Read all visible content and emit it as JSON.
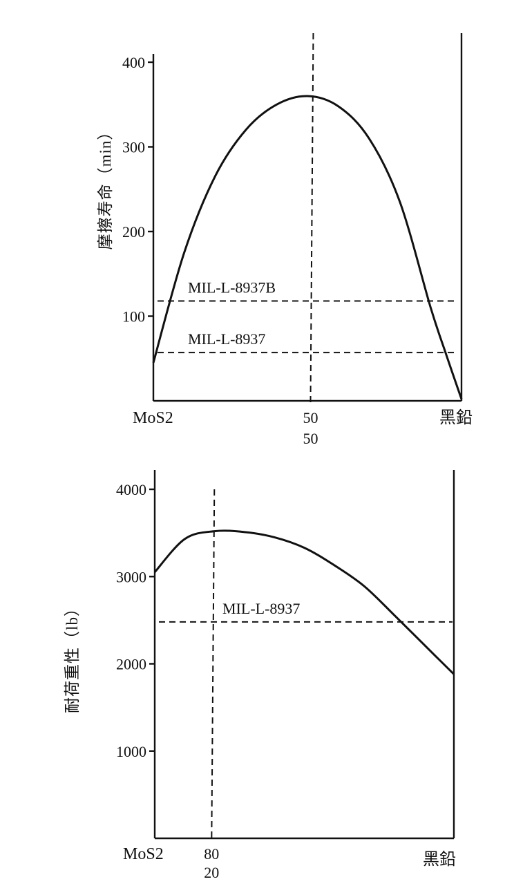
{
  "chart_data": [
    {
      "type": "line",
      "ylabel": "摩擦寿命（min）",
      "ylim": [
        0,
        400
      ],
      "yticks": [
        100,
        200,
        300,
        400
      ],
      "xlim": [
        0,
        100
      ],
      "x_labels": {
        "left": "MoS2",
        "right": "黑鉛",
        "mid_top": "50",
        "mid_bottom": "50"
      },
      "series": [
        {
          "x": [
            0,
            10,
            20,
            30,
            40,
            50,
            60,
            70,
            80,
            90,
            95,
            100
          ],
          "values": [
            45,
            175,
            265,
            320,
            350,
            360,
            348,
            310,
            235,
            110,
            55,
            2
          ]
        }
      ],
      "vline_x": 51,
      "reference_lines": [
        {
          "label": "MIL-L-8937B",
          "y": 118
        },
        {
          "label": "MIL-L-8937",
          "y": 57
        }
      ]
    },
    {
      "type": "line",
      "ylabel": "耐荷重性（lb）",
      "ylim": [
        0,
        4000
      ],
      "yticks": [
        1000,
        2000,
        3000,
        4000
      ],
      "xlim": [
        0,
        100
      ],
      "x_labels": {
        "left": "MoS2",
        "right": "黑鉛",
        "mid_top": "80",
        "mid_bottom": "20"
      },
      "series": [
        {
          "x": [
            0,
            10,
            20,
            30,
            40,
            50,
            60,
            70,
            80,
            90,
            100
          ],
          "values": [
            3050,
            3430,
            3520,
            3510,
            3450,
            3330,
            3130,
            2890,
            2560,
            2220,
            1880
          ]
        }
      ],
      "vline_x": 19,
      "reference_lines": [
        {
          "label": "MIL-L-8937",
          "y": 2480
        }
      ]
    }
  ]
}
